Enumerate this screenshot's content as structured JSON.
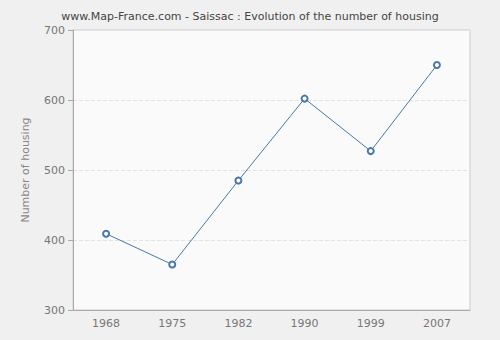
{
  "chart_data": {
    "type": "line",
    "title": "www.Map-France.com - Saissac : Evolution of the number of housing",
    "y_label": "Number of housing",
    "categories": [
      "1968",
      "1975",
      "1982",
      "1990",
      "1999",
      "2007"
    ],
    "values": [
      409,
      365,
      485,
      602,
      527,
      650
    ],
    "color": "#4a78a8",
    "marker": "circle",
    "line_style": "solid",
    "ylim": [
      300,
      700
    ],
    "yticks": [
      300,
      400,
      500,
      600,
      700
    ],
    "grid": true
  }
}
